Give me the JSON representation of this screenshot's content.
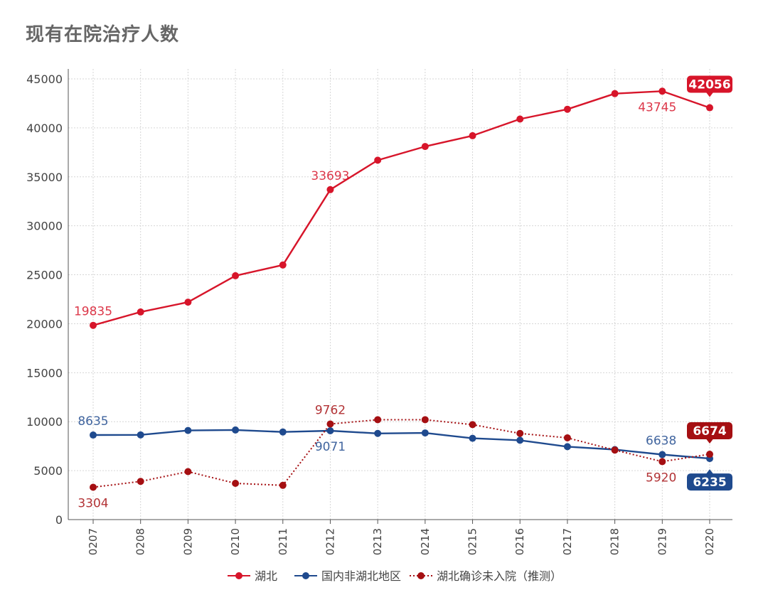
{
  "chart_data": {
    "type": "line",
    "title": "现有在院治疗人数",
    "xlabel": "",
    "ylabel": "",
    "ylim": [
      0,
      45000
    ],
    "yticks": [
      0,
      5000,
      10000,
      15000,
      20000,
      25000,
      30000,
      35000,
      40000,
      45000
    ],
    "categories": [
      "0207",
      "0208",
      "0209",
      "0210",
      "0211",
      "0212",
      "0213",
      "0214",
      "0215",
      "0216",
      "0217",
      "0218",
      "0219",
      "0220"
    ],
    "grid": true,
    "legend_position": "bottom",
    "series": [
      {
        "name": "湖北",
        "color": "#d7152a",
        "style": "solid",
        "values": [
          19835,
          21200,
          22200,
          24900,
          26000,
          33693,
          36700,
          38100,
          39200,
          40900,
          41900,
          43500,
          43745,
          42056
        ],
        "labels": [
          {
            "index": 0,
            "text": "19835",
            "position": "above"
          },
          {
            "index": 5,
            "text": "33693",
            "position": "above"
          },
          {
            "index": 12,
            "text": "43745",
            "position": "below"
          },
          {
            "index": 13,
            "text": "42056",
            "position": "above",
            "badge": true
          }
        ]
      },
      {
        "name": "国内非湖北地区",
        "color": "#1f4a8e",
        "style": "solid",
        "values": [
          8635,
          8650,
          9100,
          9150,
          8950,
          9071,
          8800,
          8850,
          8300,
          8100,
          7450,
          7150,
          6638,
          6235
        ],
        "labels": [
          {
            "index": 0,
            "text": "8635",
            "position": "above"
          },
          {
            "index": 5,
            "text": "9071",
            "position": "below"
          },
          {
            "index": 12,
            "text": "6638",
            "position": "above"
          },
          {
            "index": 13,
            "text": "6235",
            "position": "below",
            "badge": true
          }
        ]
      },
      {
        "name": "湖北确诊未入院（推测）",
        "color": "#a50f12",
        "style": "dotted",
        "values": [
          3304,
          3900,
          4900,
          3700,
          3500,
          9762,
          10200,
          10200,
          9700,
          8800,
          8350,
          7100,
          5920,
          6674
        ],
        "labels": [
          {
            "index": 0,
            "text": "3304",
            "position": "below"
          },
          {
            "index": 5,
            "text": "9762",
            "position": "above"
          },
          {
            "index": 12,
            "text": "5920",
            "position": "below"
          },
          {
            "index": 13,
            "text": "6674",
            "position": "above",
            "badge": true
          }
        ]
      }
    ]
  }
}
